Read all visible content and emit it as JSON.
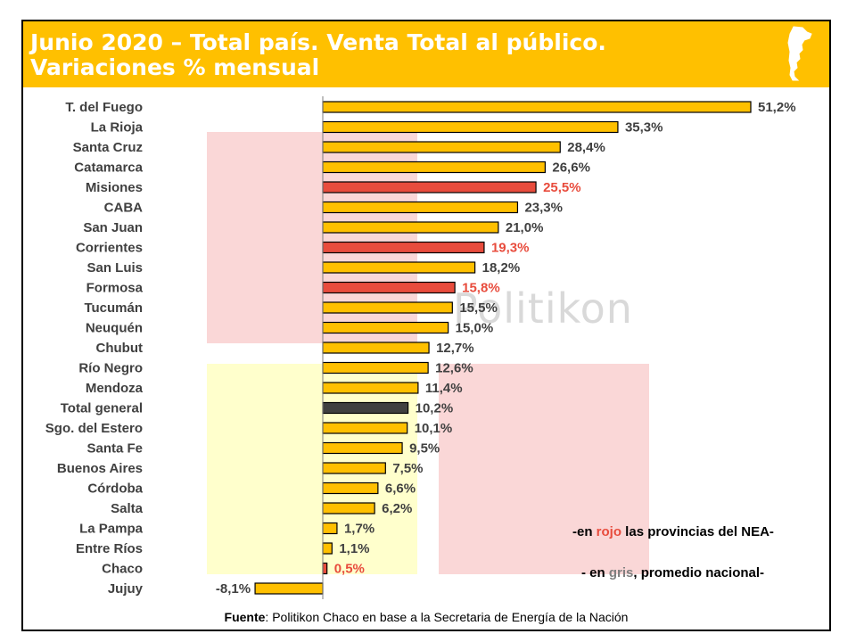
{
  "header": {
    "title_line1": "Junio 2020 – Total país. Venta Total al público.",
    "title_line2": "Variaciones % mensual"
  },
  "watermark": "Politikon",
  "notes": {
    "nea_prefix": "-en ",
    "nea_highlight": "rojo",
    "nea_suffix": " las provincias del NEA-",
    "avg_prefix": "- en ",
    "avg_highlight": "gris",
    "avg_suffix": ", promedio nacional-"
  },
  "source": {
    "label": "Fuente",
    "text": ": Politikon Chaco en base a la Secretaria de Energía de la Nación"
  },
  "colors": {
    "header": "#FFC000",
    "bar_default": "#FFC000",
    "bar_nea": "#E84C3D",
    "bar_average": "#404040",
    "label_nea": "#E84C3D",
    "label_default": "#404040"
  },
  "chart_data": {
    "type": "bar",
    "orientation": "horizontal",
    "title": "Junio 2020 – Total país. Venta Total al público. Variaciones % mensual",
    "categories": [
      "T. del Fuego",
      "La Rioja",
      "Santa Cruz",
      "Catamarca",
      "Misiones",
      "CABA",
      "San Juan",
      "Corrientes",
      "San Luis",
      "Formosa",
      "Tucumán",
      "Neuquén",
      "Chubut",
      "Río Negro",
      "Mendoza",
      "Total general",
      "Sgo. del Estero",
      "Santa Fe",
      "Buenos Aires",
      "Córdoba",
      "Salta",
      "La Pampa",
      "Entre Ríos",
      "Chaco",
      "Jujuy"
    ],
    "values": [
      51.2,
      35.3,
      28.4,
      26.6,
      25.5,
      23.3,
      21.0,
      19.3,
      18.2,
      15.8,
      15.5,
      15.0,
      12.7,
      12.6,
      11.4,
      10.2,
      10.1,
      9.5,
      7.5,
      6.6,
      6.2,
      1.7,
      1.1,
      0.5,
      -8.1
    ],
    "value_labels": [
      "51,2%",
      "35,3%",
      "28,4%",
      "26,6%",
      "25,5%",
      "23,3%",
      "21,0%",
      "19,3%",
      "18,2%",
      "15,8%",
      "15,5%",
      "15,0%",
      "12,7%",
      "12,6%",
      "11,4%",
      "10,2%",
      "10,1%",
      "9,5%",
      "7,5%",
      "6,6%",
      "6,2%",
      "1,7%",
      "1,1%",
      "0,5%",
      "-8,1%"
    ],
    "groups": [
      "other",
      "other",
      "other",
      "other",
      "nea",
      "other",
      "other",
      "nea",
      "other",
      "nea",
      "other",
      "other",
      "other",
      "other",
      "other",
      "average",
      "other",
      "other",
      "other",
      "other",
      "other",
      "other",
      "other",
      "nea",
      "other"
    ],
    "xlabel": "",
    "ylabel": "",
    "grid": false
  }
}
